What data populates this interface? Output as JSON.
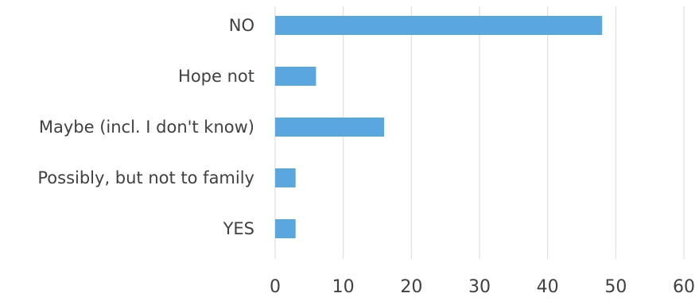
{
  "chart_data": {
    "type": "bar",
    "orientation": "horizontal",
    "title": "",
    "xlabel": "",
    "ylabel": "",
    "categories": [
      "NO",
      "Hope not",
      "Maybe (incl. I don't know)",
      "Possibly, but not to family",
      "YES"
    ],
    "values": [
      48,
      6,
      16,
      3,
      3
    ],
    "xlim": [
      0,
      60
    ],
    "xticks": [
      0,
      10,
      20,
      30,
      40,
      50,
      60
    ],
    "grid": true,
    "legend": "none",
    "bar_color": "#5aa7e0",
    "grid_color": "#d9d9d9",
    "text_color": "#404040"
  }
}
